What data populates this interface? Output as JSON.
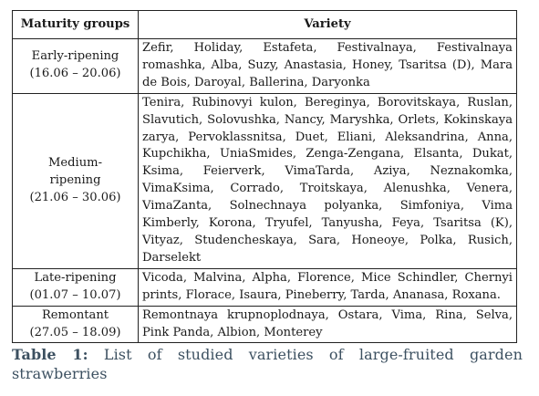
{
  "table": {
    "headers": [
      "Maturity groups",
      "Variety"
    ],
    "rows": [
      {
        "group": "Early-ripening",
        "period": "(16.06 – 20.06)",
        "variety": "Zefir, Holiday, Estafeta, Festivalnaya, Festivalnaya romashka, Alba, Suzy, Anastasia, Honey, Tsaritsa (D), Mara de Bois, Daroyal, Ballerina, Daryonka"
      },
      {
        "group_line1": "Medium-",
        "group_line2": "ripening",
        "period": "(21.06 – 30.06)",
        "variety": "Tenira, Rubinovyi kulon, Bereginya, Borovitskaya, Ruslan, Slavutich, Solovushka, Nancy, Maryshka, Orlets, Kokinskaya zarya, Pervoklassnitsa, Duet, Eliani, Aleksandrina, Anna, Kupchikha, UniaSmides, Zenga-Zengana, Elsanta, Dukat, Ksima, Feierverk, VimaTarda, Aziya, Neznakomka, VimaKsima, Corrado, Troitskaya, Alenushka, Venera, VimaZanta, Solnechnaya polyanka, Simfoniya, Vima Kimberly, Korona, Tryufel, Tanyusha, Feya, Tsaritsa (K), Vityaz, Studencheskaya, Sara, Honeoye, Polka, Rusich, Darselekt"
      },
      {
        "group": "Late-ripening",
        "period": "(01.07 – 10.07)",
        "variety": "Vicoda, Malvina, Alpha, Florence, Mice Schindler, Chernyi prints, Florace, Isaura, Pineberry, Tarda, Ananasa, Roxana."
      },
      {
        "group": "Remontant",
        "period": "(27.05 – 18.09)",
        "variety": "Remontnaya krupnoplodnaya, Ostara, Vima, Rina, Selva, Pink Panda, Albion, Monterey"
      }
    ]
  },
  "caption": {
    "label": "Table 1:",
    "text": " List of studied varieties of large-fruited garden strawberries"
  }
}
